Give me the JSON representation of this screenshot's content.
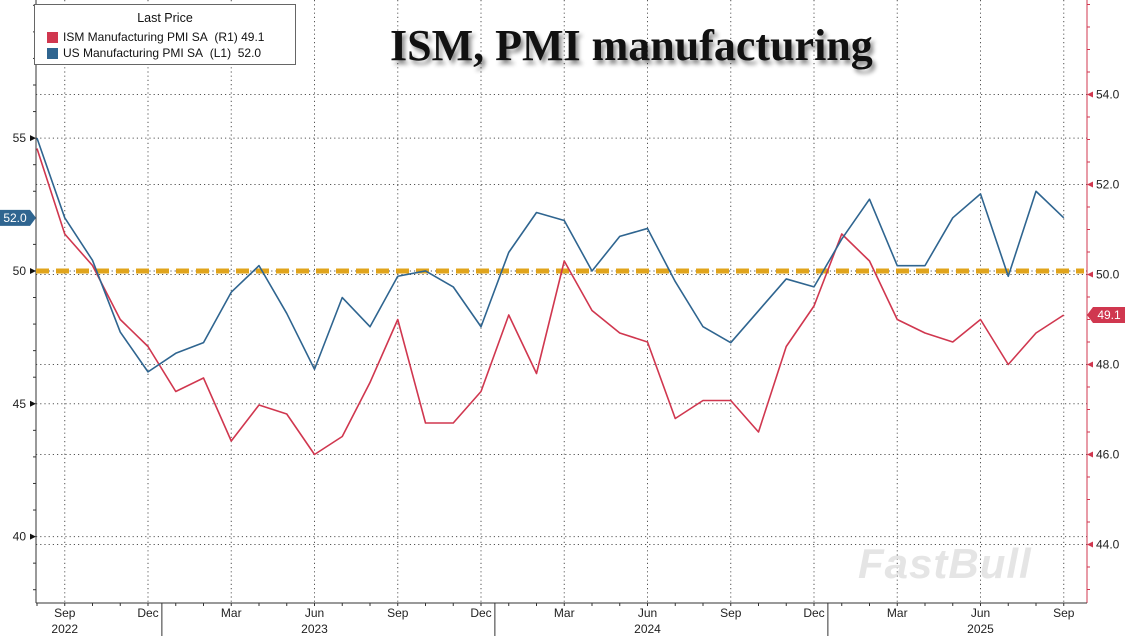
{
  "chart_data": {
    "type": "line",
    "title": "ISM, PMI manufacturing",
    "legend": {
      "title": "Last Price",
      "placement": "top-left",
      "entries": [
        {
          "label": "ISM Manufacturing PMI SA",
          "axis": "(R1)",
          "value": "49.1",
          "color": "#d0374f"
        },
        {
          "label": "US Manufacturing PMI SA",
          "axis": "(L1)",
          "value": "52.0",
          "color": "#2f6590"
        }
      ]
    },
    "x": [
      "2022-08",
      "2022-09",
      "2022-10",
      "2022-11",
      "2022-12",
      "2023-01",
      "2023-02",
      "2023-03",
      "2023-04",
      "2023-05",
      "2023-06",
      "2023-07",
      "2023-08",
      "2023-09",
      "2023-10",
      "2023-11",
      "2023-12",
      "2024-01",
      "2024-02",
      "2024-03",
      "2024-04",
      "2024-05",
      "2024-06",
      "2024-07",
      "2024-08",
      "2024-09",
      "2024-10",
      "2024-11",
      "2024-12",
      "2025-01",
      "2025-02",
      "2025-03",
      "2025-04",
      "2025-05",
      "2025-06",
      "2025-07",
      "2025-08",
      "2025-09"
    ],
    "x_ticks": [
      {
        "date": "2022-09",
        "label": "Sep"
      },
      {
        "date": "2022-12",
        "label": "Dec"
      },
      {
        "date": "2023-03",
        "label": "Mar"
      },
      {
        "date": "2023-06",
        "label": "Jun"
      },
      {
        "date": "2023-09",
        "label": "Sep"
      },
      {
        "date": "2023-12",
        "label": "Dec"
      },
      {
        "date": "2024-03",
        "label": "Mar"
      },
      {
        "date": "2024-06",
        "label": "Jun"
      },
      {
        "date": "2024-09",
        "label": "Sep"
      },
      {
        "date": "2024-12",
        "label": "Dec"
      },
      {
        "date": "2025-03",
        "label": "Mar"
      },
      {
        "date": "2025-06",
        "label": "Jun"
      },
      {
        "date": "2025-09",
        "label": "Sep"
      }
    ],
    "year_labels": [
      {
        "date": "2022-09",
        "label": "2022"
      },
      {
        "date": "2023-06",
        "label": "2023"
      },
      {
        "date": "2024-06",
        "label": "2024"
      },
      {
        "date": "2025-06",
        "label": "2025"
      }
    ],
    "series": [
      {
        "name": "ISM Manufacturing PMI SA",
        "axis": "right",
        "color": "#d0374f",
        "last_label": "49.1",
        "values": [
          52.8,
          50.9,
          50.2,
          49.0,
          48.4,
          47.4,
          47.7,
          46.3,
          47.1,
          46.9,
          46.0,
          46.4,
          47.6,
          49.0,
          46.7,
          46.7,
          47.4,
          49.1,
          47.8,
          50.3,
          49.2,
          48.7,
          48.5,
          46.8,
          47.2,
          47.2,
          46.5,
          48.4,
          49.3,
          50.9,
          50.3,
          49.0,
          48.7,
          48.5,
          49.0,
          48.0,
          48.7,
          49.1
        ]
      },
      {
        "name": "US Manufacturing PMI SA",
        "axis": "left",
        "color": "#2f6590",
        "last_label": "52.0",
        "values": [
          55.0,
          52.0,
          50.4,
          47.7,
          46.2,
          46.9,
          47.3,
          49.2,
          50.2,
          48.4,
          46.3,
          49.0,
          47.9,
          49.8,
          50.0,
          49.4,
          47.9,
          50.7,
          52.2,
          51.9,
          50.0,
          51.3,
          51.6,
          49.6,
          47.9,
          47.3,
          48.5,
          49.7,
          49.4,
          51.2,
          52.7,
          50.2,
          50.2,
          52.0,
          52.9,
          49.8,
          53.0,
          52.0
        ]
      }
    ],
    "reference_line": {
      "value": 50,
      "style": "dashed",
      "color": "#e0a41c"
    },
    "y_left": {
      "range": [
        37.5,
        60.2
      ],
      "ticks": [
        40,
        45,
        50,
        55
      ],
      "tick_labels": [
        "40",
        "45",
        "50",
        "55"
      ]
    },
    "y_right": {
      "range": [
        42.7,
        56.1
      ],
      "ticks": [
        44,
        46,
        48,
        50,
        52,
        54
      ],
      "tick_labels": [
        "44.0",
        "46.0",
        "48.0",
        "50.0",
        "52.0",
        "54.0"
      ]
    },
    "grid": true,
    "watermark": "FastBull"
  }
}
